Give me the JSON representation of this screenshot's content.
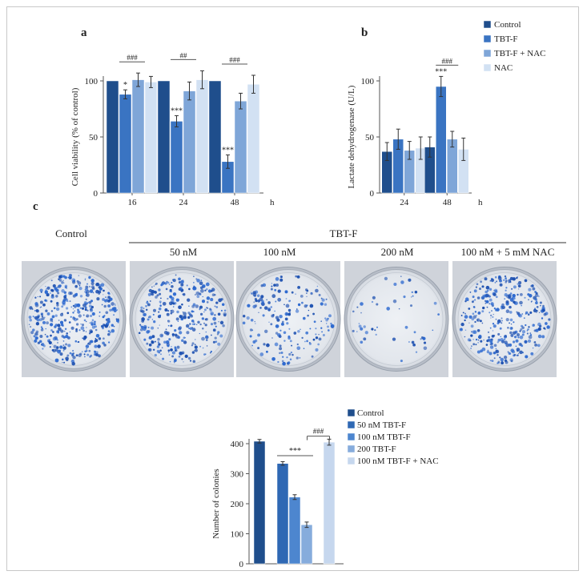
{
  "panel_labels": {
    "a": "a",
    "b": "b",
    "c": "c"
  },
  "colors": {
    "control": "#1f4e8c",
    "tbtf": "#3a74c2",
    "tbtf_nac": "#7fa6d8",
    "nac": "#d2e1f3",
    "c_control": "#1f4e8c",
    "c_50": "#2f68b4",
    "c_100": "#4d86cf",
    "c_200": "#86acdc",
    "c_100nac": "#c6d7ee"
  },
  "chart_data": [
    {
      "id": "a",
      "type": "bar",
      "title": "",
      "xlabel": "",
      "x_unit": "h",
      "ylabel": "Cell viability (% of control)",
      "ylim": [
        0,
        100
      ],
      "yticks": [
        0,
        50,
        100
      ],
      "categories": [
        "16",
        "24",
        "48"
      ],
      "series": [
        {
          "name": "Control",
          "values": [
            100,
            100,
            100
          ],
          "errors": [
            0,
            0,
            0
          ]
        },
        {
          "name": "TBT-F",
          "values": [
            88,
            64,
            28
          ],
          "errors": [
            4,
            5,
            6
          ]
        },
        {
          "name": "TBT-F + NAC",
          "values": [
            101,
            91,
            82
          ],
          "errors": [
            6,
            8,
            7
          ]
        },
        {
          "name": "NAC",
          "values": [
            99,
            101,
            97
          ],
          "errors": [
            5,
            8,
            8
          ]
        }
      ],
      "annotations": [
        {
          "category": "16",
          "series": 1,
          "text": "*"
        },
        {
          "category": "24",
          "series": 1,
          "text": "***"
        },
        {
          "category": "48",
          "series": 1,
          "text": "***"
        },
        {
          "category": "16",
          "from_series": 1,
          "to_series": 2,
          "text": "###"
        },
        {
          "category": "24",
          "from_series": 1,
          "to_series": 2,
          "text": "##"
        },
        {
          "category": "48",
          "from_series": 1,
          "to_series": 2,
          "text": "###"
        }
      ]
    },
    {
      "id": "b",
      "type": "bar",
      "title": "",
      "xlabel": "",
      "x_unit": "h",
      "ylabel": "Lactate dehydrogenase (U/L)",
      "ylim": [
        0,
        100
      ],
      "yticks": [
        0,
        50,
        100
      ],
      "categories": [
        "24",
        "48"
      ],
      "series": [
        {
          "name": "Control",
          "values": [
            37,
            41
          ],
          "errors": [
            8,
            9
          ]
        },
        {
          "name": "TBT-F",
          "values": [
            48,
            95
          ],
          "errors": [
            9,
            9
          ]
        },
        {
          "name": "TBT-F + NAC",
          "values": [
            38,
            48
          ],
          "errors": [
            8,
            7
          ]
        },
        {
          "name": "NAC",
          "values": [
            40,
            39
          ],
          "errors": [
            10,
            10
          ]
        }
      ],
      "annotations": [
        {
          "category": "48",
          "series": 1,
          "text": "***"
        },
        {
          "category": "48",
          "from_series": 1,
          "to_series": 2,
          "text": "###"
        }
      ]
    },
    {
      "id": "c",
      "type": "bar",
      "title": "",
      "xlabel": "",
      "ylabel": "Number of colonies",
      "ylim": [
        0,
        400
      ],
      "yticks": [
        0,
        100,
        200,
        300,
        400
      ],
      "categories": [
        "Control",
        "50 nM TBT-F",
        "100 nM TBT-F",
        "200 TBT-F",
        "100 nM TBT-F + NAC"
      ],
      "series": [
        {
          "name": "Colonies",
          "values": [
            408,
            334,
            222,
            130,
            405
          ],
          "errors": [
            6,
            6,
            8,
            9,
            10
          ]
        }
      ],
      "annotations": [
        {
          "from": 1,
          "to": 3,
          "text": "***"
        },
        {
          "from": 3,
          "to": 4,
          "text": "###"
        }
      ]
    }
  ],
  "legend_ab": [
    "Control",
    "TBT-F",
    "TBT-F + NAC",
    "NAC"
  ],
  "legend_c": [
    "Control",
    "50 nM TBT-F",
    "100 nM TBT-F",
    "200 TBT-F",
    "100 nM TBT-F + NAC"
  ],
  "photos": {
    "group_header": "TBT-F",
    "labels": [
      "Control",
      "50 nM",
      "100 nM",
      "200 nM",
      "100 nM + 5 mM NAC"
    ],
    "density": [
      1.0,
      0.8,
      0.45,
      0.12,
      0.85
    ]
  }
}
